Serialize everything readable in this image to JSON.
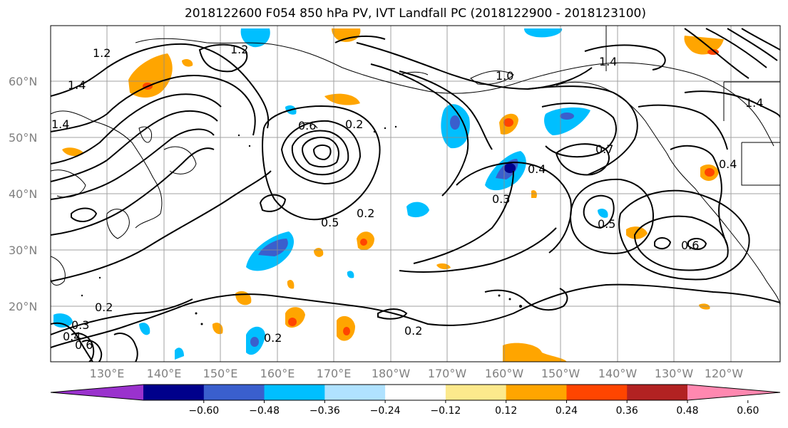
{
  "title": "2018122600 F054 850 hPa PV, IVT Landfall PC (2018122900 - 2018123100)",
  "lat_labels": [
    "60°N",
    "50°N",
    "40°N",
    "30°N",
    "20°N"
  ],
  "lon_labels": [
    "130°E",
    "140°E",
    "150°E",
    "160°E",
    "170°E",
    "180°W",
    "170°W",
    "160°W",
    "150°W",
    "140°W",
    "130°W",
    "120°W"
  ],
  "colorbar": {
    "ticks": [
      "−0.60",
      "−0.48",
      "−0.36",
      "−0.24",
      "−0.12",
      "0.12",
      "0.24",
      "0.36",
      "0.48",
      "0.60"
    ],
    "colors": [
      "#9a32cd",
      "#00008b",
      "#3a5fcd",
      "#00bfff",
      "#b0e2ff",
      "#ffffff",
      "#fce98c",
      "#ffa500",
      "#ff4500",
      "#b22222",
      "#ff88b0"
    ]
  },
  "contour_labels": [
    "1.2",
    "1.2",
    "1.4",
    "1.4",
    "1.4",
    "1.4",
    "1.0",
    "0.6",
    "0.2",
    "0.5",
    "0.2",
    "0.3",
    "0.4",
    "0.7",
    "0.4",
    "0.5",
    "0.6",
    "0.2",
    "0.2",
    "0.2",
    "0.3",
    "0.4",
    "0.6"
  ]
}
